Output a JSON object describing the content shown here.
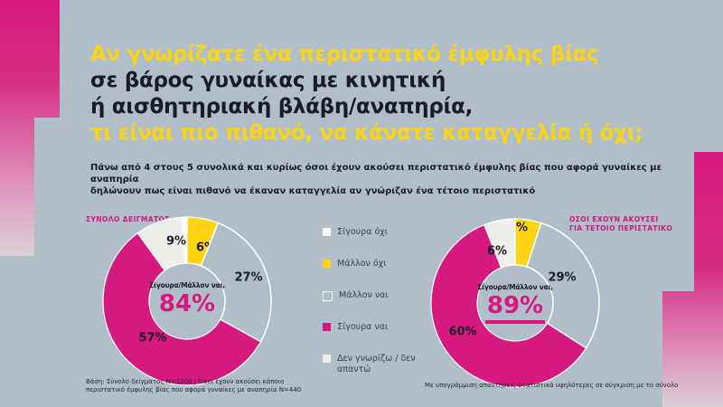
{
  "colors": {
    "background": "#AFBEC8",
    "magenta": "#D6197F",
    "yellow": "#FFD513",
    "dark": "#1A1A28",
    "white": "#FFFFFF",
    "offwhite": "#F0EEE9"
  },
  "header": {
    "title_lines": [
      {
        "text": "Αν γνωρίζατε ένα περιστατικό έμφυλης βίας",
        "color": "yellow"
      },
      {
        "text": "σε βάρος γυναίκας με κινητική",
        "color": "dark"
      },
      {
        "text": "ή αισθητηριακή βλάβη/αναπηρία,",
        "color": "dark"
      },
      {
        "text": "τι είναι πιο πιθανό, να κάνατε καταγγελία ή όχι;",
        "color": "yellow"
      }
    ],
    "subtitle_lines": [
      "Πάνω από 4 στους 5 συνολικά και κυρίως όσοι έχουν ακούσει περιστατικό έμφυλης βίας που αφορά γυναίκες με αναπηρία",
      "δηλώνουν πως είναι πιθανό να έκαναν καταγγελία αν γνώριζαν ένα τέτοιο περιστατικό"
    ]
  },
  "legend": {
    "items": [
      {
        "label": "Σίγουρα όχι",
        "color_key": "white"
      },
      {
        "label": "Μάλλον όχι",
        "color_key": "yellow"
      },
      {
        "label": "Μάλλον ναι",
        "color_key": "bg_outline"
      },
      {
        "label": "Σίγουρα ναι",
        "color_key": "magenta"
      },
      {
        "label": "Δεν γνωρίζω / δεν απαντώ",
        "color_key": "offwhite"
      }
    ]
  },
  "chart_data": [
    {
      "type": "donut",
      "title_lines": [
        "ΣΥΝΟΛΟ ΔΕΙΓΜΑΤΟΣ"
      ],
      "unit": "%",
      "center_label": "Σίγουρα/Μάλλον ναι,",
      "center_value": "84%",
      "center_value_underlined": false,
      "segments": [
        {
          "label": "Σίγουρα όχι",
          "value": 1,
          "color_key": "white"
        },
        {
          "label": "Μάλλον όχι",
          "value": 6,
          "color_key": "yellow"
        },
        {
          "label": "Μάλλον ναι",
          "value": 27,
          "color_key": "bg_outline"
        },
        {
          "label": "Σίγουρα ναι",
          "value": 57,
          "color_key": "magenta"
        },
        {
          "label": "Δεν γνωρίζω / δεν απαντώ",
          "value": 9,
          "color_key": "offwhite"
        }
      ]
    },
    {
      "type": "donut",
      "title_lines": [
        "ΟΣΟΙ ΕΧΟΥΝ ΑΚΟΥΣΕΙ",
        "ΓΙΑ ΤΕΤΟΙΟ ΠΕΡΙΣΤΑΤΙΚΟ"
      ],
      "unit": "%",
      "center_label": "Σίγουρα/Μάλλον ναι,",
      "center_value": "89%",
      "center_value_underlined": true,
      "segments": [
        {
          "label": "Σίγουρα όχι",
          "value": 0,
          "color_key": "white"
        },
        {
          "label": "Μάλλον όχι",
          "value": 5,
          "color_key": "yellow"
        },
        {
          "label": "Μάλλον ναι",
          "value": 29,
          "color_key": "bg_outline"
        },
        {
          "label": "Σίγουρα ναι",
          "value": 60,
          "color_key": "magenta"
        },
        {
          "label": "Δεν γνωρίζω / δεν απαντώ",
          "value": 6,
          "color_key": "offwhite"
        }
      ]
    }
  ],
  "footnotes": {
    "left_lines": [
      "Βάση: Σύνολο δείγματος Ν=1000 | Όσοι έχουν ακούσει κάποιο",
      "περιστατικό έμφυλης βίας που αφορά γυναίκες με αναπηρία  Ν=440"
    ],
    "right": "Με υπογράμμιση απαντήσεις στατιστικά υψηλότερες σε σύγκριση με το σύνολο"
  }
}
